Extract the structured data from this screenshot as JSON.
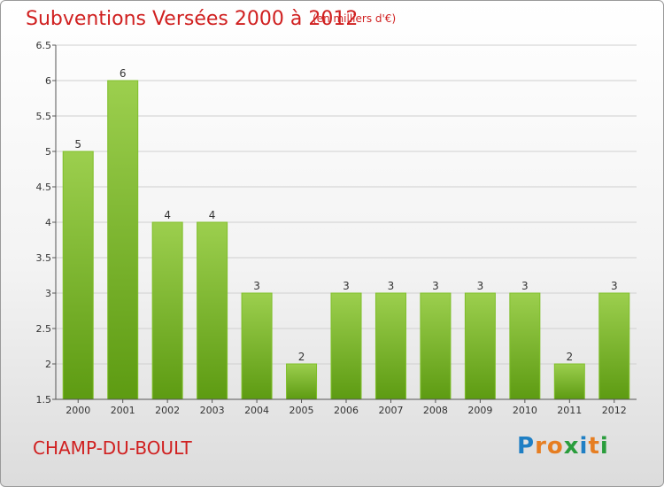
{
  "header": {
    "title": "Subventions Versées 2000 à 2012",
    "subtitle": "(en milliers d'€)"
  },
  "footer": {
    "place": "CHAMP-DU-BOULT",
    "logo_text": "Proxiti"
  },
  "colors": {
    "title": "#d02020",
    "bar_top": "#9ccf4e",
    "bar_bottom": "#5d9b12",
    "axis": "#555555",
    "grid": "#cfcfcf"
  },
  "chart_data": {
    "type": "bar",
    "title": "Subventions Versées 2000 à 2012",
    "subtitle": "(en milliers d'€)",
    "categories": [
      "2000",
      "2001",
      "2002",
      "2003",
      "2004",
      "2005",
      "2006",
      "2007",
      "2008",
      "2009",
      "2010",
      "2011",
      "2012"
    ],
    "values": [
      5,
      6,
      4,
      4,
      3,
      2,
      3,
      3,
      3,
      3,
      3,
      2,
      3
    ],
    "data_labels": [
      "5",
      "6",
      "4",
      "4",
      "3",
      "2",
      "3",
      "3",
      "3",
      "3",
      "3",
      "2",
      "3"
    ],
    "ylim": [
      1.5,
      6.5
    ],
    "yticks": [
      "1.5",
      "2",
      "2.5",
      "3",
      "3.5",
      "4",
      "4.5",
      "5",
      "5.5",
      "6",
      "6.5"
    ],
    "grid": true,
    "legend": "none"
  }
}
